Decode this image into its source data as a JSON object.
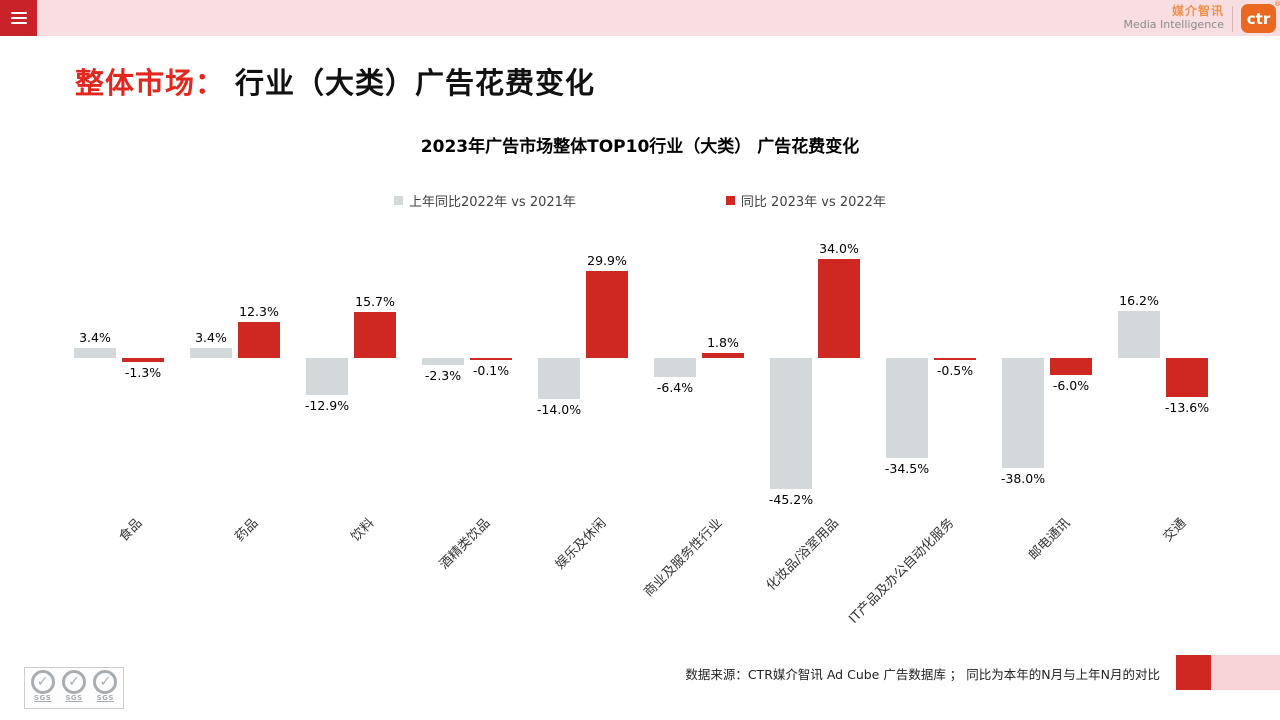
{
  "header": {
    "brand_cn": "媒介智讯",
    "brand_en": "Media Intelligence",
    "logo_text": "ctr",
    "reg_mark": "®",
    "accent_color": "#eb6820",
    "bar_color": "#f8dee0",
    "menu_button_color": "#c9232a"
  },
  "title": {
    "highlight": "整体市场：",
    "rest": "行业（大类）广告花费变化",
    "highlight_color": "#e3261e"
  },
  "chart_data": {
    "type": "bar",
    "title": "2023年广告市场整体TOP10行业（大类） 广告花费变化",
    "legend_position": "top",
    "grid": false,
    "axis_visible": false,
    "value_suffix": "%",
    "ylim": [
      -50,
      40
    ],
    "categories": [
      "食品",
      "药品",
      "饮料",
      "酒精类饮品",
      "娱乐及休闲",
      "商业及服务性行业",
      "化妆品/浴室用品",
      "IT产品及办公自动化服务",
      "邮电通讯",
      "交通"
    ],
    "legend": [
      {
        "label": "上年同比2022年 vs 2021年",
        "color": "#d3d8db"
      },
      {
        "label": "同比 2023年 vs 2022年",
        "color": "#cf2823"
      }
    ],
    "series": [
      {
        "name": "上年同比2022年 vs 2021年",
        "color": "#d3d8db",
        "values": [
          3.4,
          3.4,
          -12.9,
          -2.3,
          -14.0,
          -6.4,
          -45.2,
          -34.5,
          -38.0,
          16.2
        ]
      },
      {
        "name": "同比 2023年 vs 2022年",
        "color": "#cf2823",
        "values": [
          -1.3,
          12.3,
          15.7,
          -0.1,
          29.9,
          1.8,
          34.0,
          -0.5,
          -6.0,
          -13.6
        ]
      }
    ]
  },
  "footer": {
    "source_text": "数据来源：CTR媒介智讯 Ad Cube 广告数据库 ；  同比为本年的N月与上年N月的对比",
    "sgs_label": "SGS"
  }
}
